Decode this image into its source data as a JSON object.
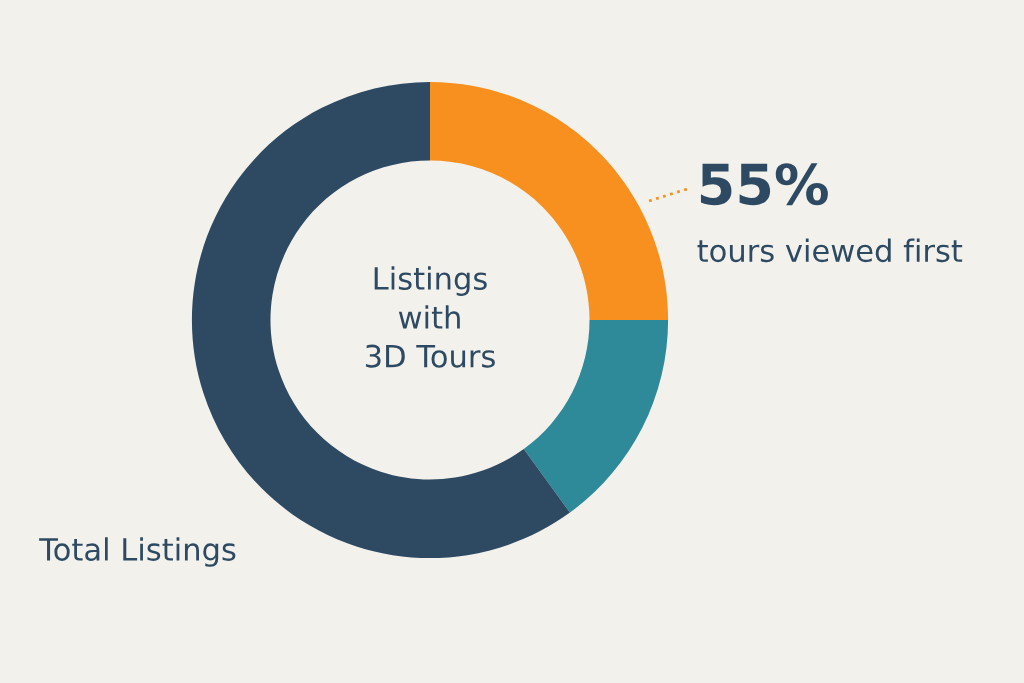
{
  "chart_data": {
    "type": "donut",
    "categories": [
      null,
      null,
      "Total Listings"
    ],
    "values": [
      25,
      15,
      60
    ],
    "colors": [
      "#f7901e",
      "#2e8a99",
      "#2e4a62"
    ],
    "annotations": [
      "Listings\nwith\n3D Tours",
      "55%",
      "tours viewed first"
    ],
    "legend": false
  }
}
